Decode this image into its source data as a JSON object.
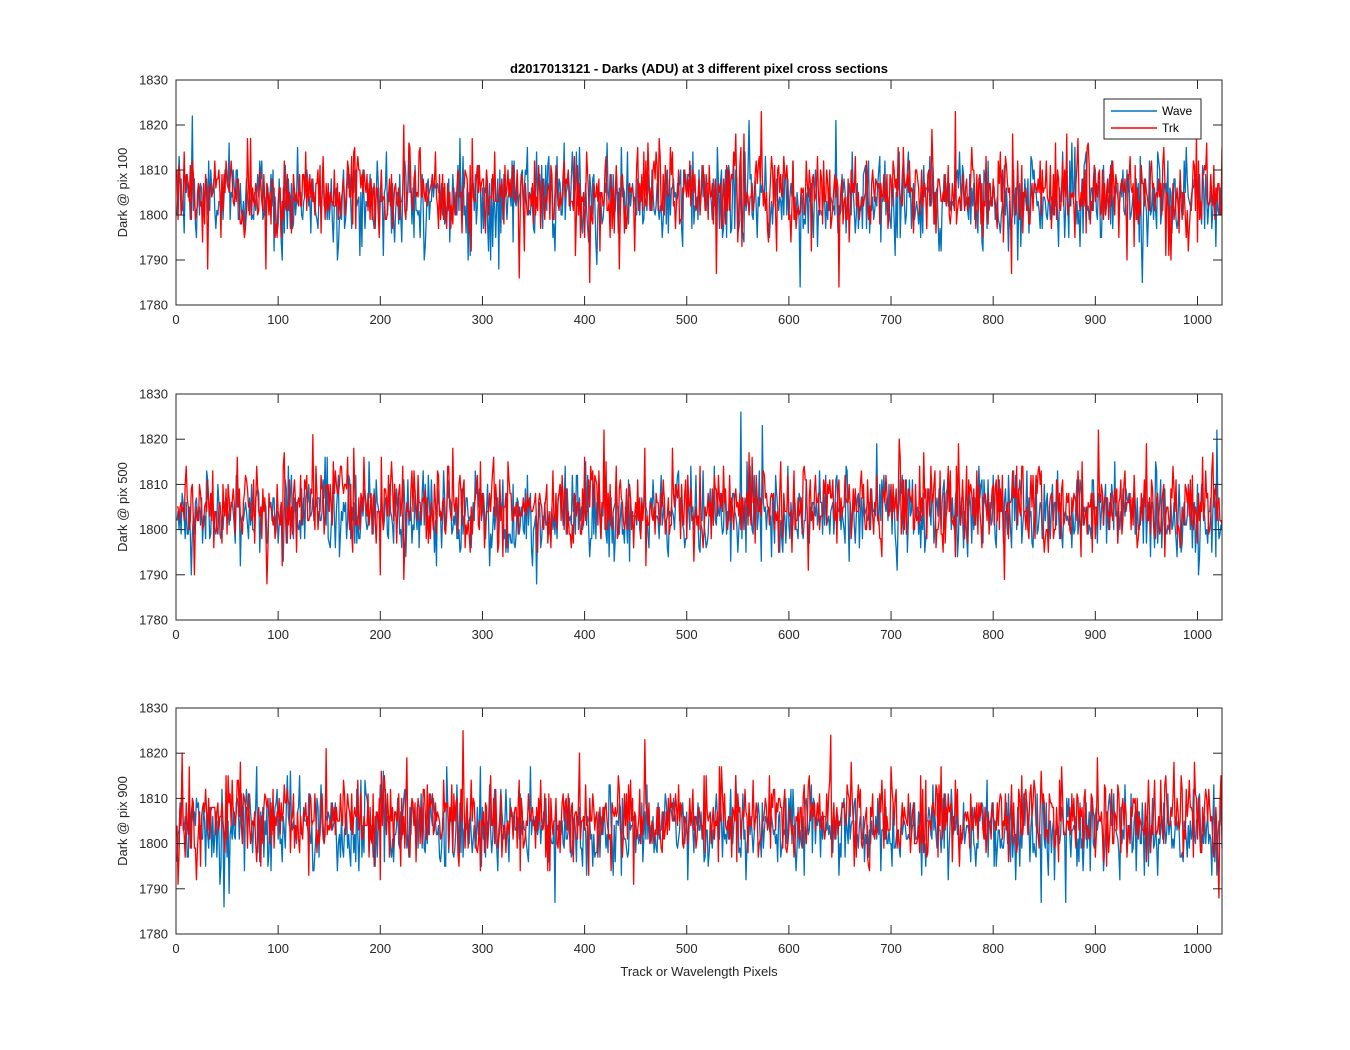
{
  "figure": {
    "title": "d2017013121 - Darks (ADU) at 3 different pixel cross sections"
  },
  "colors": {
    "wave": "#0072BD",
    "trk": "#FF0000",
    "axis": "#262626",
    "background": "#FFFFFF"
  },
  "chart_data": [
    {
      "type": "line",
      "title": "d2017013121 - Darks (ADU) at 3 different pixel cross sections",
      "xlabel": "",
      "ylabel": "Dark @ pix 100",
      "xlim": [
        0,
        1024
      ],
      "ylim": [
        1780,
        1830
      ],
      "xticks": [
        "0",
        "100",
        "200",
        "300",
        "400",
        "500",
        "600",
        "700",
        "800",
        "900",
        "1000"
      ],
      "yticks": [
        "1780",
        "1790",
        "1800",
        "1810",
        "1820",
        "1830"
      ],
      "grid": false,
      "legend": {
        "position": "top-right",
        "entries": [
          "Wave",
          "Trk"
        ]
      },
      "series": [
        {
          "name": "Wave",
          "color": "#0072BD",
          "n_points": 1024,
          "mean": 1803.5,
          "std": 5.0,
          "min": 1784,
          "max": 1822,
          "notable": [
            [
              15,
              1822
            ],
            [
              560,
              1821
            ],
            [
              610,
              1784
            ],
            [
              645,
              1821
            ],
            [
              945,
              1785
            ]
          ]
        },
        {
          "name": "Trk",
          "color": "#FF0000",
          "n_points": 1024,
          "mean": 1804.5,
          "std": 5.0,
          "min": 1784,
          "max": 1823,
          "notable": [
            [
              30,
              1788
            ],
            [
              222,
              1820
            ],
            [
              335,
              1786
            ],
            [
              572,
              1823
            ],
            [
              648,
              1784
            ],
            [
              762,
              1823
            ]
          ]
        }
      ]
    },
    {
      "type": "line",
      "xlabel": "",
      "ylabel": "Dark @ pix 500",
      "xlim": [
        0,
        1024
      ],
      "ylim": [
        1780,
        1830
      ],
      "xticks": [
        "0",
        "100",
        "200",
        "300",
        "400",
        "500",
        "600",
        "700",
        "800",
        "900",
        "1000"
      ],
      "yticks": [
        "1780",
        "1790",
        "1800",
        "1810",
        "1820",
        "1830"
      ],
      "grid": false,
      "series": [
        {
          "name": "Wave",
          "color": "#0072BD",
          "n_points": 1024,
          "mean": 1803.5,
          "std": 4.8,
          "min": 1788,
          "max": 1826,
          "notable": [
            [
              14,
              1790
            ],
            [
              352,
              1788
            ],
            [
              552,
              1826
            ],
            [
              573,
              1823
            ],
            [
              1018,
              1822
            ]
          ]
        },
        {
          "name": "Trk",
          "color": "#FF0000",
          "n_points": 1024,
          "mean": 1805.0,
          "std": 4.8,
          "min": 1788,
          "max": 1822,
          "notable": [
            [
              88,
              1788
            ],
            [
              133,
              1821
            ],
            [
              222,
              1789
            ],
            [
              418,
              1822
            ],
            [
              902,
              1822
            ]
          ]
        }
      ]
    },
    {
      "type": "line",
      "xlabel": "Track or Wavelength Pixels",
      "ylabel": "Dark @ pix 900",
      "xlim": [
        0,
        1024
      ],
      "ylim": [
        1780,
        1830
      ],
      "xticks": [
        "0",
        "100",
        "200",
        "300",
        "400",
        "500",
        "600",
        "700",
        "800",
        "900",
        "1000"
      ],
      "yticks": [
        "1780",
        "1790",
        "1800",
        "1810",
        "1820",
        "1830"
      ],
      "grid": false,
      "series": [
        {
          "name": "Wave",
          "color": "#0072BD",
          "n_points": 1024,
          "mean": 1803.0,
          "std": 4.8,
          "min": 1786,
          "max": 1821,
          "notable": [
            [
              46,
              1786
            ],
            [
              370,
              1787
            ],
            [
              870,
              1787
            ]
          ]
        },
        {
          "name": "Trk",
          "color": "#FF0000",
          "n_points": 1024,
          "mean": 1805.5,
          "std": 4.8,
          "min": 1788,
          "max": 1825,
          "notable": [
            [
              146,
              1821
            ],
            [
              280,
              1825
            ],
            [
              640,
              1824
            ],
            [
              1020,
              1788
            ]
          ]
        }
      ]
    }
  ]
}
